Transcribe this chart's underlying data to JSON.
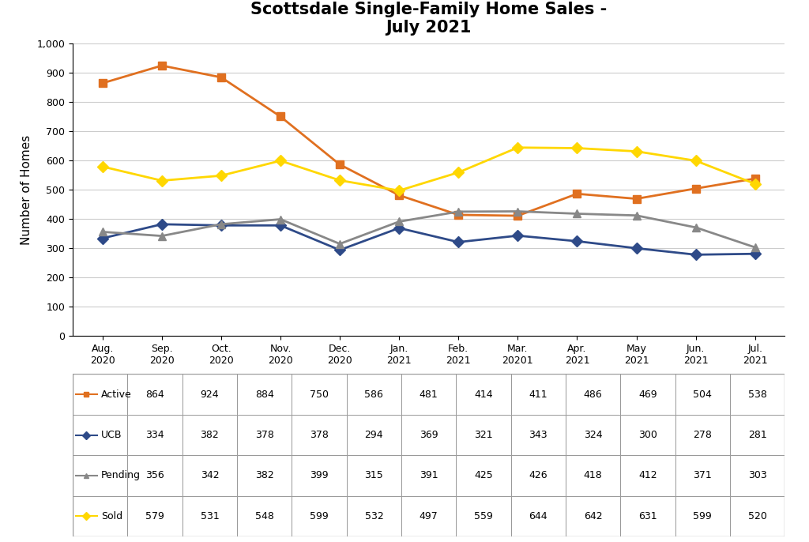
{
  "title": "Scottsdale Single-Family Home Sales -\nJuly 2021",
  "ylabel": "Number of Homes",
  "categories": [
    "Aug.\n2020",
    "Sep.\n2020",
    "Oct.\n2020",
    "Nov.\n2020",
    "Dec.\n2020",
    "Jan.\n2021",
    "Feb.\n2021",
    "Mar.\n20201",
    "Apr.\n2021",
    "May\n2021",
    "Jun.\n2021",
    "Jul.\n2021"
  ],
  "series_order": [
    "Active",
    "UCB",
    "Pending",
    "Sold"
  ],
  "series": {
    "Active": {
      "values": [
        864,
        924,
        884,
        750,
        586,
        481,
        414,
        411,
        486,
        469,
        504,
        538
      ],
      "color": "#E07020",
      "marker": "s",
      "linewidth": 2
    },
    "UCB": {
      "values": [
        334,
        382,
        378,
        378,
        294,
        369,
        321,
        343,
        324,
        300,
        278,
        281
      ],
      "color": "#2E4A88",
      "marker": "D",
      "linewidth": 2
    },
    "Pending": {
      "values": [
        356,
        342,
        382,
        399,
        315,
        391,
        425,
        426,
        418,
        412,
        371,
        303
      ],
      "color": "#888888",
      "marker": "^",
      "linewidth": 2
    },
    "Sold": {
      "values": [
        579,
        531,
        548,
        599,
        532,
        497,
        559,
        644,
        642,
        631,
        599,
        520
      ],
      "color": "#FFD700",
      "marker": "D",
      "linewidth": 2
    }
  },
  "ylim": [
    0,
    1000
  ],
  "yticks": [
    0,
    100,
    200,
    300,
    400,
    500,
    600,
    700,
    800,
    900,
    1000
  ],
  "ytick_labels": [
    "0",
    "100",
    "200",
    "300",
    "400",
    "500",
    "600",
    "700",
    "800",
    "900",
    "1,000"
  ],
  "background_color": "#FFFFFF",
  "grid_color": "#CCCCCC",
  "table_row_colors": [
    "#FFFFFF",
    "#FFFFFF",
    "#FFFFFF",
    "#FFFFFF"
  ],
  "title_fontsize": 15,
  "axis_label_fontsize": 11,
  "tick_fontsize": 9
}
